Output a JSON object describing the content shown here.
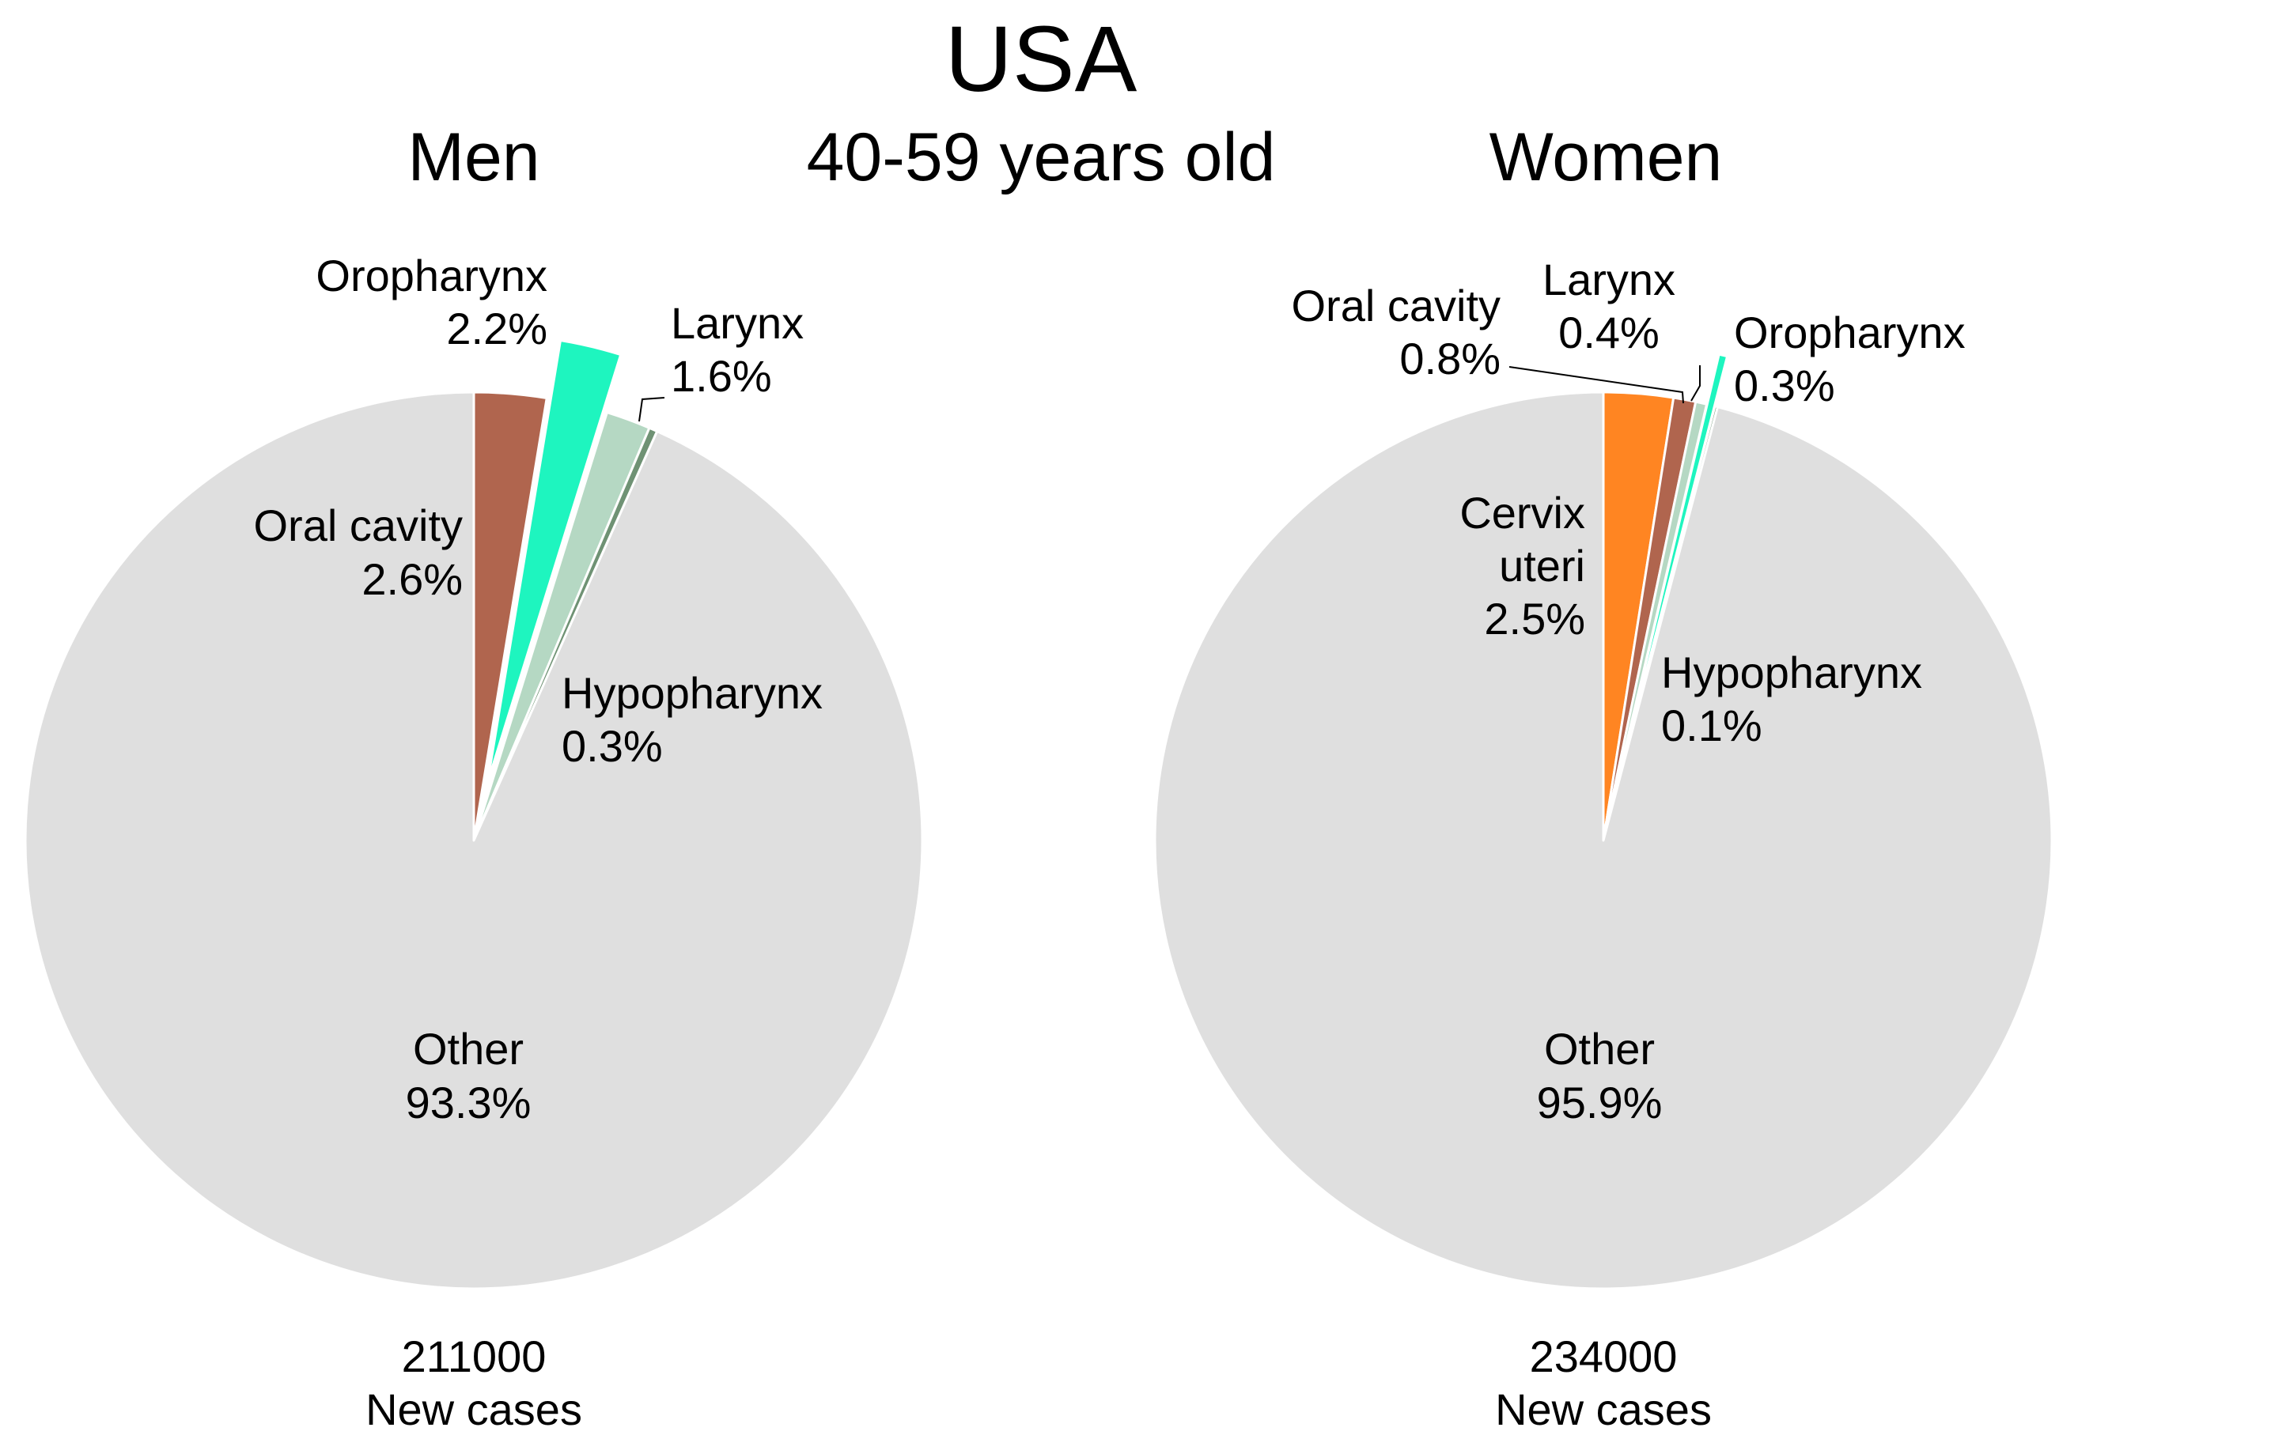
{
  "title": "USA",
  "subtitle": "40-59 years old",
  "chart_data": [
    {
      "type": "pie",
      "title": "Men",
      "total": "211000",
      "total_caption": "New cases",
      "slices": [
        {
          "label": "Oral cavity",
          "value": 2.6,
          "text": "2.6%",
          "color": "#b0654e",
          "exploded": false
        },
        {
          "label": "Oropharynx",
          "value": 2.2,
          "text": "2.2%",
          "color": "#1ef5bf",
          "exploded": true
        },
        {
          "label": "Larynx",
          "value": 1.6,
          "text": "1.6%",
          "color": "#b5d8c3",
          "exploded": false
        },
        {
          "label": "Hypopharynx",
          "value": 0.3,
          "text": "0.3%",
          "color": "#6f9274",
          "exploded": false
        },
        {
          "label": "Other",
          "value": 93.3,
          "text": "93.3%",
          "color": "#dfdfdf",
          "exploded": false
        }
      ]
    },
    {
      "type": "pie",
      "title": "Women",
      "total": "234000",
      "total_caption": "New cases",
      "slices": [
        {
          "label": "Cervix uteri",
          "value": 2.5,
          "text": "2.5%",
          "color": "#ff8522",
          "exploded": false
        },
        {
          "label": "Oral cavity",
          "value": 0.8,
          "text": "0.8%",
          "color": "#b0654e",
          "exploded": false
        },
        {
          "label": "Larynx",
          "value": 0.4,
          "text": "0.4%",
          "color": "#b5d8c3",
          "exploded": false
        },
        {
          "label": "Oropharynx",
          "value": 0.3,
          "text": "0.3%",
          "color": "#1ef5bf",
          "exploded": true
        },
        {
          "label": "Hypopharynx",
          "value": 0.1,
          "text": "0.1%",
          "color": "#6f9274",
          "exploded": false
        },
        {
          "label": "Other",
          "value": 95.9,
          "text": "95.9%",
          "color": "#dfdfdf",
          "exploded": false
        }
      ]
    }
  ]
}
